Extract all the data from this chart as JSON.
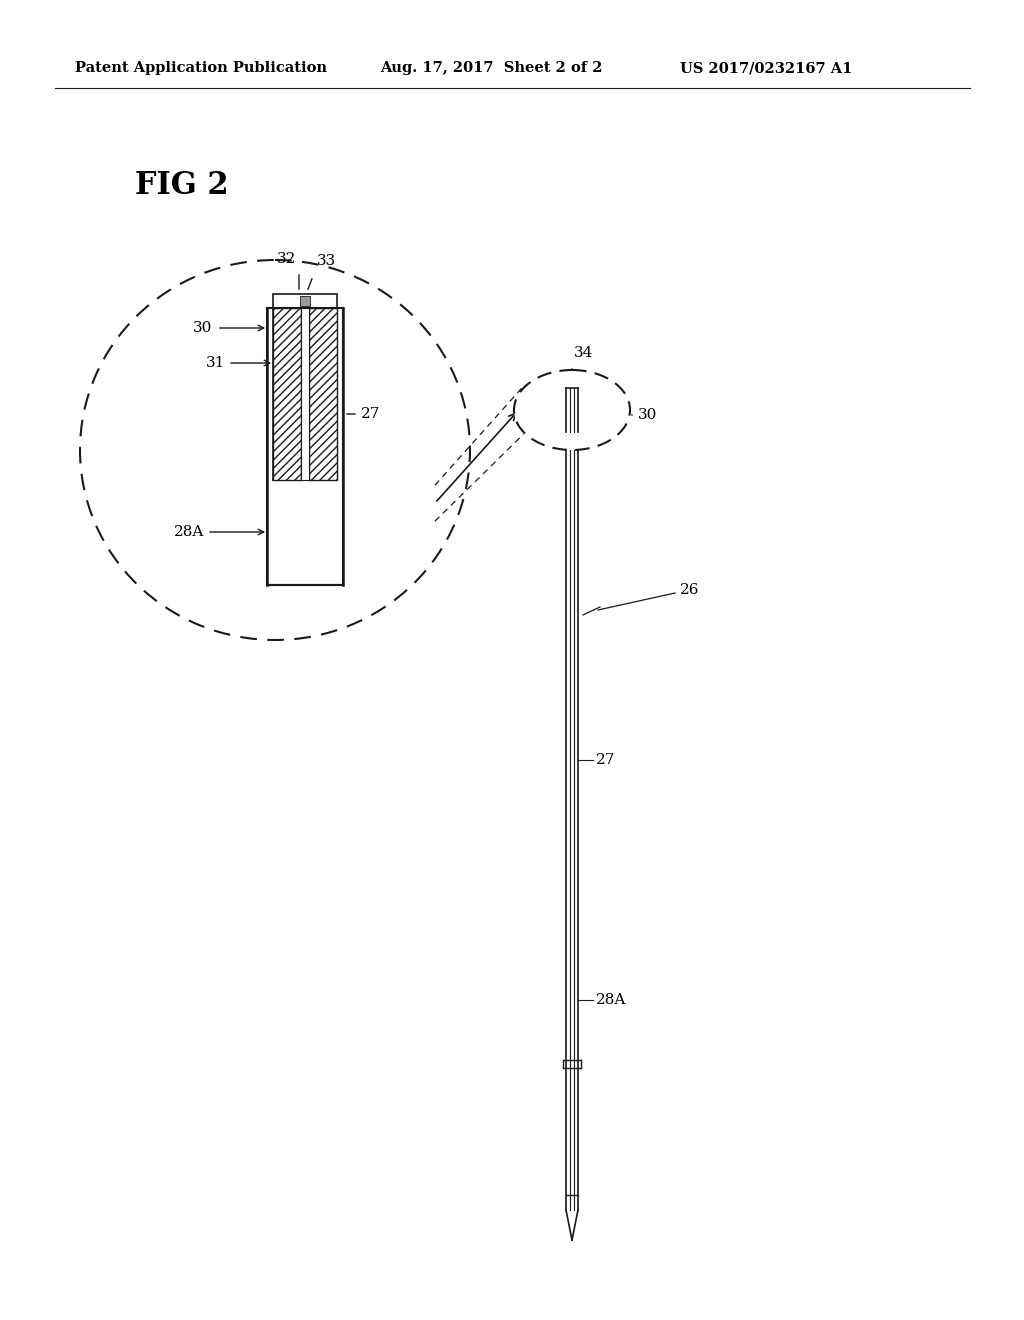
{
  "bg_color": "#ffffff",
  "header_left": "Patent Application Publication",
  "header_mid": "Aug. 17, 2017  Sheet 2 of 2",
  "header_right": "US 2017/0232167 A1",
  "fig_label": "FIG 2",
  "line_color": "#1a1a1a"
}
